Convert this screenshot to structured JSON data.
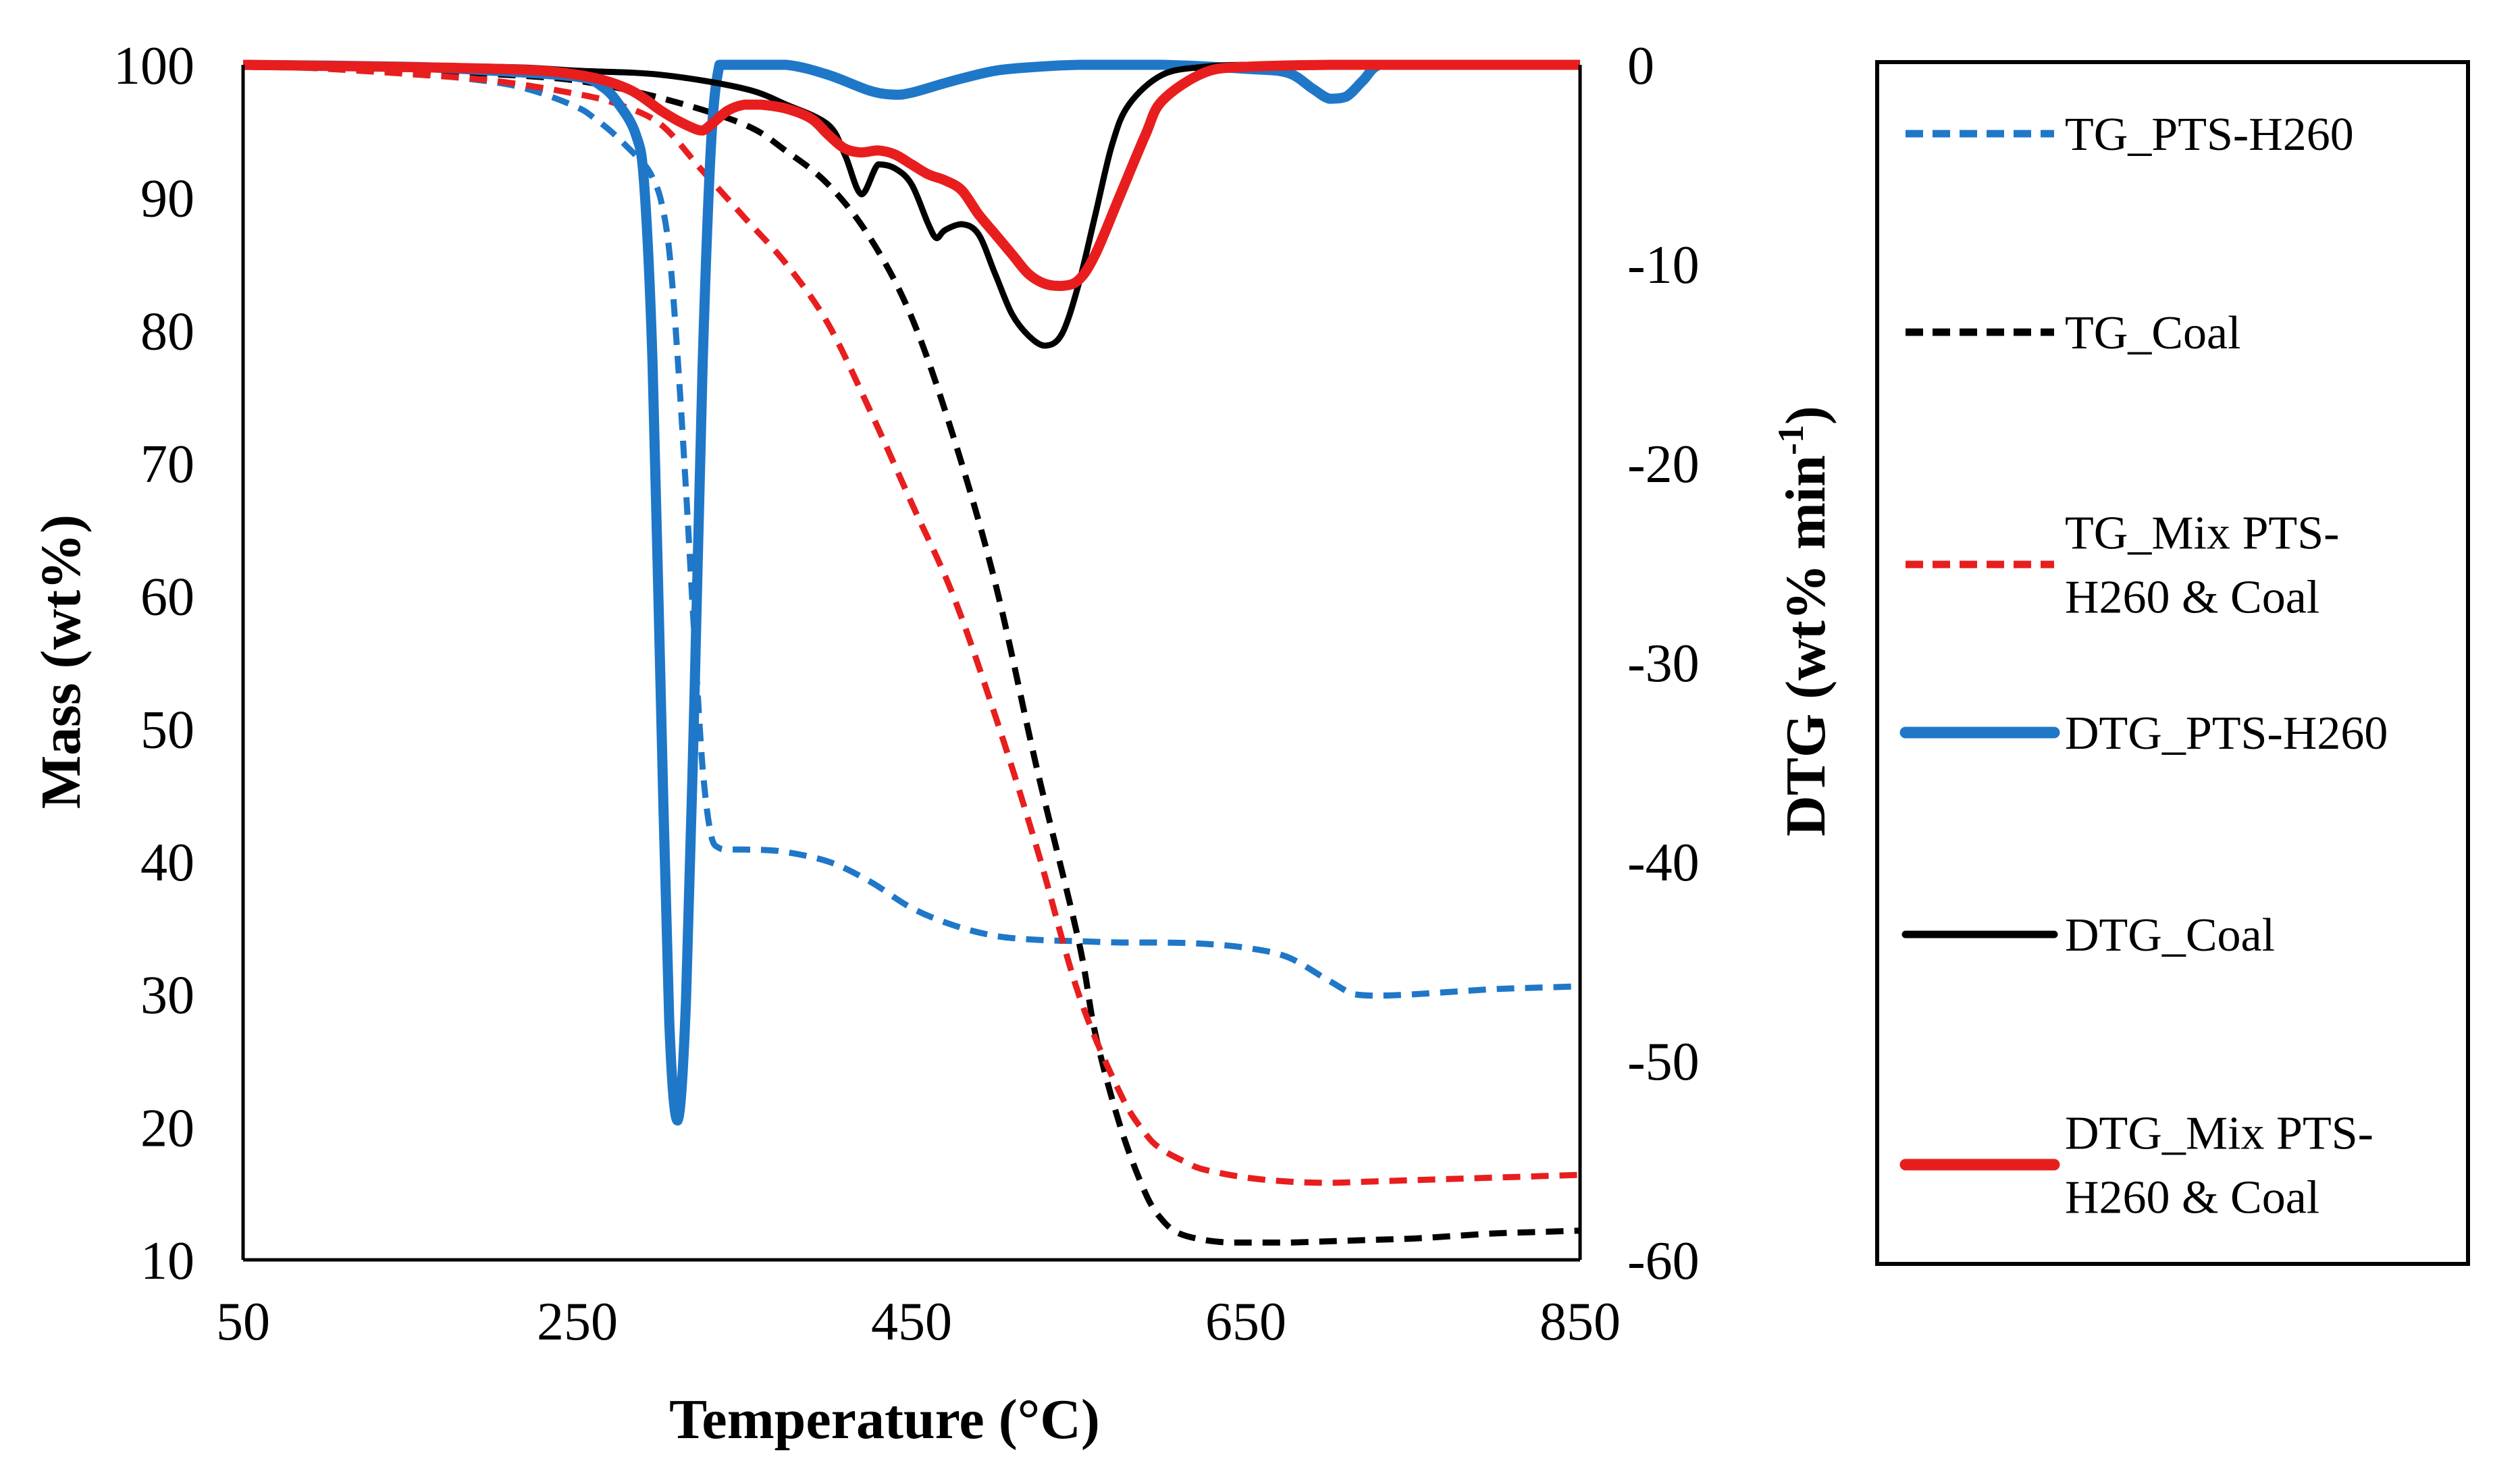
{
  "chart_data": {
    "type": "line",
    "title": "",
    "xlabel": "Temperature (°C)",
    "ylabel_left": "Mass (wt%)",
    "ylabel_right_main": "DTG (wt% min",
    "ylabel_right_sup": "-1",
    "ylabel_right_close": ")",
    "xlim": [
      50,
      850
    ],
    "ylim_left": [
      10,
      100
    ],
    "ylim_right": [
      -60,
      0
    ],
    "x_ticks": [
      50,
      250,
      450,
      650,
      850
    ],
    "x_tick_labels": [
      "50",
      "250",
      "450",
      "650",
      "850"
    ],
    "y_left_ticks": [
      10,
      20,
      30,
      40,
      50,
      60,
      70,
      80,
      90,
      100
    ],
    "y_left_tick_labels": [
      "10",
      "20",
      "30",
      "40",
      "50",
      "60",
      "70",
      "80",
      "90",
      "100"
    ],
    "y_right_ticks": [
      0,
      -10,
      -20,
      -30,
      -40,
      -50,
      -60
    ],
    "y_right_tick_labels": [
      "0",
      "-10",
      "-20",
      "-30",
      "-40",
      "-50",
      "-60"
    ],
    "grid": false,
    "legend_position": "right",
    "series": [
      {
        "name": "TG_PTS-H260",
        "legend_lines": [
          "TG_PTS-H260"
        ],
        "axis": "left",
        "color": "#1F77C8",
        "dash": true,
        "width": 9,
        "x": [
          50,
          100,
          150,
          200,
          225,
          250,
          260,
          270,
          280,
          290,
          295,
          300,
          305,
          310,
          315,
          320,
          325,
          330,
          335,
          340,
          345,
          350,
          370,
          400,
          425,
          450,
          475,
          500,
          525,
          550,
          575,
          600,
          625,
          650,
          675,
          700,
          715,
          730,
          750,
          775,
          800,
          825,
          850
        ],
        "y": [
          100,
          99.8,
          99.4,
          98.7,
          98.0,
          96.8,
          96.0,
          95.0,
          93.8,
          92.5,
          91.5,
          89.8,
          86.0,
          78.0,
          68.0,
          57.0,
          47.0,
          42.0,
          41.0,
          40.9,
          40.9,
          40.9,
          40.8,
          40.0,
          38.5,
          36.5,
          35.2,
          34.4,
          34.1,
          34.0,
          33.9,
          33.9,
          33.8,
          33.5,
          32.8,
          31.0,
          30.0,
          29.9,
          30.0,
          30.2,
          30.4,
          30.5,
          30.6
        ]
      },
      {
        "name": "TG_Coal",
        "legend_lines": [
          "TG_Coal"
        ],
        "axis": "left",
        "color": "#000000",
        "dash": true,
        "width": 9,
        "x": [
          50,
          100,
          150,
          200,
          250,
          300,
          350,
          375,
          400,
          425,
          450,
          475,
          500,
          525,
          550,
          560,
          575,
          590,
          600,
          610,
          625,
          640,
          650,
          675,
          700,
          725,
          750,
          775,
          800,
          825,
          850
        ],
        "y": [
          100,
          99.8,
          99.6,
          99.3,
          98.8,
          97.5,
          95.5,
          93.5,
          91.0,
          87.0,
          81.0,
          72.0,
          61.0,
          47.0,
          34.0,
          27.0,
          20.0,
          15.0,
          13.0,
          12.0,
          11.5,
          11.3,
          11.3,
          11.3,
          11.4,
          11.5,
          11.6,
          11.8,
          12.0,
          12.1,
          12.2
        ]
      },
      {
        "name": "TG_Mix PTS-H260 & Coal",
        "legend_lines": [
          "TG_Mix PTS-",
          "H260 & Coal"
        ],
        "axis": "left",
        "color": "#E81E1E",
        "dash": true,
        "width": 9,
        "x": [
          50,
          100,
          150,
          200,
          250,
          275,
          300,
          325,
          350,
          375,
          400,
          425,
          450,
          475,
          500,
          525,
          550,
          575,
          590,
          600,
          615,
          625,
          650,
          675,
          700,
          725,
          750,
          775,
          800,
          825,
          850
        ],
        "y": [
          100,
          99.7,
          99.3,
          98.8,
          97.8,
          97.0,
          95.5,
          92.0,
          88.5,
          85.0,
          80.5,
          74.0,
          67.0,
          60.0,
          51.0,
          41.0,
          30.0,
          22.5,
          19.5,
          18.3,
          17.3,
          16.8,
          16.2,
          15.9,
          15.8,
          15.9,
          16.0,
          16.1,
          16.2,
          16.3,
          16.4
        ]
      },
      {
        "name": "DTG_PTS-H260",
        "legend_lines": [
          "DTG_PTS-H260"
        ],
        "axis": "right",
        "color": "#1F77C8",
        "dash": false,
        "width": 15,
        "x": [
          50,
          150,
          200,
          250,
          265,
          275,
          285,
          290,
          295,
          300,
          305,
          310,
          315,
          320,
          325,
          330,
          335,
          340,
          345,
          375,
          400,
          425,
          440,
          450,
          475,
          500,
          525,
          550,
          600,
          650,
          675,
          690,
          700,
          710,
          720,
          730,
          750,
          800,
          850
        ],
        "y": [
          0,
          -0.1,
          -0.3,
          -0.6,
          -1.1,
          -2.0,
          -3.5,
          -6.0,
          -15.0,
          -32.0,
          -48.0,
          -53.0,
          -47.0,
          -32.0,
          -15.0,
          -4.0,
          0,
          0,
          0,
          0,
          -0.5,
          -1.3,
          -1.5,
          -1.4,
          -0.8,
          -0.3,
          -0.1,
          0,
          0,
          -0.2,
          -0.4,
          -1.2,
          -1.7,
          -1.6,
          -0.8,
          0,
          0,
          0,
          0
        ]
      },
      {
        "name": "DTG_Coal",
        "legend_lines": [
          "DTG_Coal"
        ],
        "axis": "right",
        "color": "#000000",
        "dash": false,
        "width": 9,
        "x": [
          50,
          200,
          250,
          300,
          350,
          375,
          400,
          410,
          420,
          430,
          440,
          450,
          460,
          465,
          470,
          480,
          490,
          500,
          510,
          520,
          530,
          540,
          550,
          560,
          570,
          580,
          600,
          625,
          650,
          700,
          750,
          800,
          850
        ],
        "y": [
          0,
          -0.1,
          -0.3,
          -0.5,
          -1.2,
          -2.0,
          -3.0,
          -4.5,
          -6.5,
          -5.0,
          -5.2,
          -6.0,
          -8.0,
          -8.7,
          -8.3,
          -8.0,
          -8.5,
          -10.5,
          -12.5,
          -13.6,
          -14.1,
          -13.5,
          -11.0,
          -7.5,
          -4.0,
          -2.0,
          -0.5,
          -0.1,
          0,
          0,
          0,
          0,
          0
        ]
      },
      {
        "name": "DTG_Mix PTS-H260 & Coal",
        "legend_lines": [
          "DTG_Mix PTS-",
          "H260 & Coal"
        ],
        "axis": "right",
        "color": "#E81E1E",
        "dash": false,
        "width": 15,
        "x": [
          50,
          200,
          250,
          280,
          300,
          310,
          320,
          325,
          330,
          340,
          350,
          360,
          375,
          390,
          400,
          410,
          420,
          430,
          440,
          450,
          460,
          470,
          480,
          490,
          500,
          510,
          520,
          530,
          540,
          550,
          560,
          575,
          590,
          600,
          625,
          650,
          700,
          750,
          800,
          850
        ],
        "y": [
          0,
          -0.2,
          -0.5,
          -1.2,
          -2.3,
          -2.8,
          -3.2,
          -3.3,
          -3.0,
          -2.3,
          -2.0,
          -2.0,
          -2.2,
          -2.7,
          -3.5,
          -4.2,
          -4.4,
          -4.3,
          -4.5,
          -5.0,
          -5.5,
          -5.8,
          -6.3,
          -7.5,
          -8.5,
          -9.5,
          -10.5,
          -11.0,
          -11.1,
          -10.8,
          -9.5,
          -6.5,
          -3.5,
          -1.8,
          -0.4,
          -0.1,
          0,
          0,
          0,
          0
        ]
      }
    ]
  }
}
